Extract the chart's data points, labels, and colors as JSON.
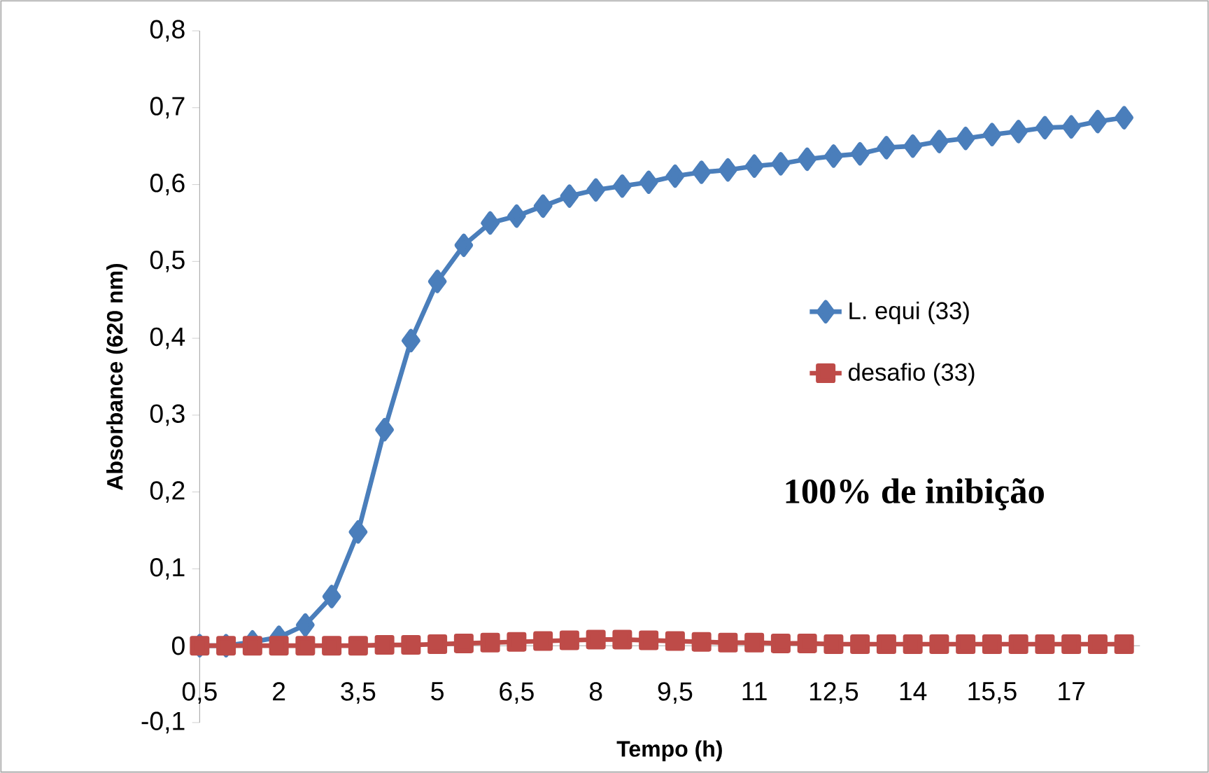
{
  "chart_data": {
    "type": "line",
    "xlabel": "Tempo (h)",
    "ylabel": "Absorbance (620 nm)",
    "annotations": [
      "100% de inibição"
    ],
    "categories": [
      "0,5",
      null,
      null,
      "2",
      null,
      null,
      "3,5",
      null,
      null,
      "5",
      null,
      null,
      "6,5",
      null,
      null,
      "8",
      null,
      null,
      "9,5",
      null,
      null,
      "11",
      null,
      null,
      "12,5",
      null,
      null,
      "14",
      null,
      null,
      "15,5",
      null,
      null,
      "17",
      null,
      null
    ],
    "series": [
      {
        "name": "L. equi (33)",
        "color": "#4a7ebb",
        "marker": "diamond",
        "values": [
          0,
          0,
          0.005,
          0.011,
          0.027,
          0.064,
          0.148,
          0.281,
          0.397,
          0.474,
          0.521,
          0.55,
          0.559,
          0.572,
          0.585,
          0.593,
          0.598,
          0.603,
          0.611,
          0.616,
          0.619,
          0.624,
          0.627,
          0.633,
          0.637,
          0.64,
          0.648,
          0.65,
          0.656,
          0.66,
          0.665,
          0.669,
          0.674,
          0.675,
          0.682,
          0.687
        ]
      },
      {
        "name": "desafio (33)",
        "color": "#be4b48",
        "marker": "square",
        "values": [
          0,
          0,
          0,
          0,
          0,
          0,
          0,
          0.001,
          0.001,
          0.002,
          0.003,
          0.004,
          0.005,
          0.006,
          0.007,
          0.008,
          0.008,
          0.007,
          0.006,
          0.005,
          0.004,
          0.004,
          0.003,
          0.003,
          0.002,
          0.002,
          0.002,
          0.002,
          0.002,
          0.002,
          0.002,
          0.002,
          0.002,
          0.002,
          0.002,
          0.002
        ]
      }
    ],
    "ylim": [
      -0.1,
      0.8
    ],
    "yticks": [
      {
        "value": -0.1,
        "label": "-0,1"
      },
      {
        "value": 0,
        "label": "0"
      },
      {
        "value": 0.1,
        "label": "0,1"
      },
      {
        "value": 0.2,
        "label": "0,2"
      },
      {
        "value": 0.3,
        "label": "0,3"
      },
      {
        "value": 0.4,
        "label": "0,4"
      },
      {
        "value": 0.5,
        "label": "0,5"
      },
      {
        "value": 0.6,
        "label": "0,6"
      },
      {
        "value": 0.7,
        "label": "0,7"
      },
      {
        "value": 0.8,
        "label": "0,8"
      }
    ],
    "legend": "right",
    "grid": false
  }
}
